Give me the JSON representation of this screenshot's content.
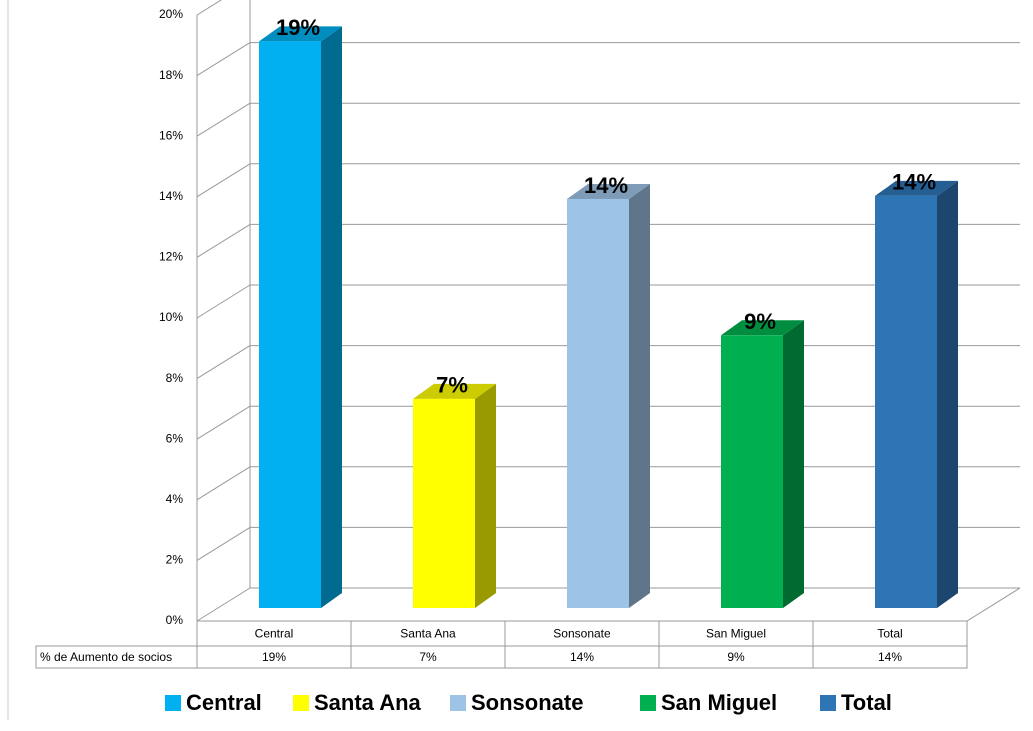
{
  "chart_data": {
    "type": "bar3d",
    "categories": [
      "Central",
      "Santa Ana",
      "Sonsonate",
      "San Miguel",
      "Total"
    ],
    "series": [
      {
        "name": "% de Aumento de socios",
        "colors": [
          "#00b0f0",
          "#ffff00",
          "#9dc3e6",
          "#00b050",
          "#2e75b6"
        ],
        "values": [
          18.7,
          6.9,
          13.5,
          9.0,
          13.6
        ],
        "value_labels": [
          "19%",
          "7%",
          "14%",
          "9%",
          "14%"
        ]
      }
    ],
    "ylim": [
      0,
      20
    ],
    "yticks": [
      {
        "value": 0,
        "label": "0%"
      },
      {
        "value": 2,
        "label": "2%"
      },
      {
        "value": 4,
        "label": "4%"
      },
      {
        "value": 6,
        "label": "6%"
      },
      {
        "value": 8,
        "label": "8%"
      },
      {
        "value": 10,
        "label": "10%"
      },
      {
        "value": 12,
        "label": "12%"
      },
      {
        "value": 14,
        "label": "14%"
      },
      {
        "value": 16,
        "label": "16%"
      },
      {
        "value": 18,
        "label": "18%"
      },
      {
        "value": 20,
        "label": "20%"
      }
    ],
    "grid": true,
    "data_table": true,
    "legend": "bottom"
  }
}
